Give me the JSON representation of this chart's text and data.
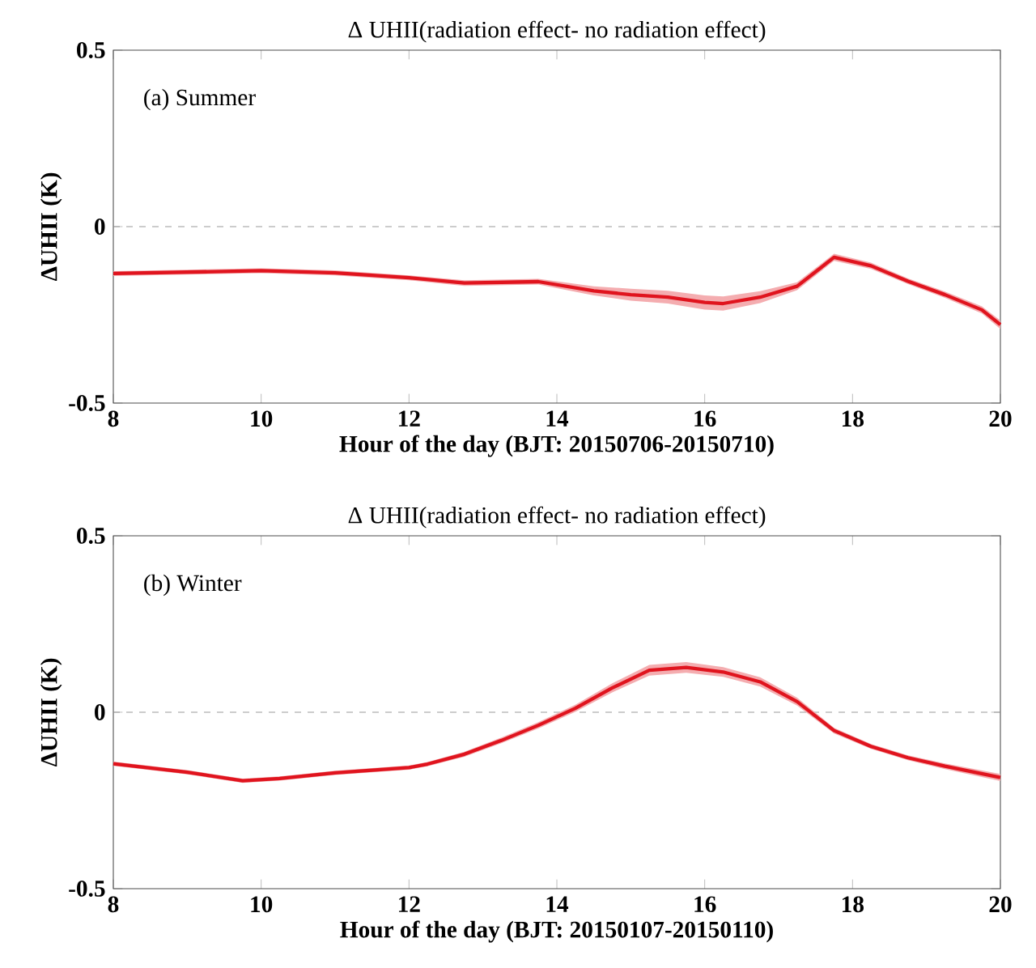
{
  "chart_data": [
    {
      "type": "line",
      "title": "Δ UHII(radiation effect- no radiation effect)",
      "xlabel": "Hour of the day (BJT: 20150706-20150710)",
      "ylabel": "ΔUHII (K)",
      "annotations": [
        "(a) Summer"
      ],
      "xlim": [
        8,
        20
      ],
      "ylim": [
        -0.5,
        0.5
      ],
      "xticks": [
        8,
        10,
        12,
        14,
        16,
        18,
        20
      ],
      "yticks": [
        -0.5,
        0,
        0.5
      ],
      "grid": false,
      "marker": "none",
      "line_style": "solid",
      "ref_lines": [
        {
          "axis": "y",
          "value": 0,
          "color": "#9a9a9a",
          "line_style": "dashed"
        }
      ],
      "series": [
        {
          "color": "#e0141e",
          "x": [
            8,
            10,
            11,
            12,
            12.75,
            13.75,
            14.5,
            15,
            15.5,
            16,
            16.25,
            16.75,
            17.25,
            17.75,
            18.25,
            18.75,
            19.25,
            19.75,
            20
          ],
          "values": [
            -0.133,
            -0.125,
            -0.131,
            -0.145,
            -0.16,
            -0.156,
            -0.182,
            -0.193,
            -0.2,
            -0.215,
            -0.218,
            -0.2,
            -0.169,
            -0.087,
            -0.111,
            -0.155,
            -0.193,
            -0.236,
            -0.278
          ],
          "lower": [
            -0.14,
            -0.132,
            -0.138,
            -0.152,
            -0.168,
            -0.164,
            -0.195,
            -0.21,
            -0.218,
            -0.235,
            -0.238,
            -0.217,
            -0.18,
            -0.097,
            -0.12,
            -0.163,
            -0.202,
            -0.246,
            -0.29
          ],
          "upper": [
            -0.126,
            -0.118,
            -0.124,
            -0.138,
            -0.152,
            -0.148,
            -0.169,
            -0.176,
            -0.182,
            -0.195,
            -0.198,
            -0.183,
            -0.158,
            -0.077,
            -0.102,
            -0.147,
            -0.184,
            -0.226,
            -0.266
          ]
        }
      ]
    },
    {
      "type": "line",
      "title": "Δ UHII(radiation effect- no radiation effect)",
      "xlabel": "Hour of the day (BJT: 20150107-20150110)",
      "ylabel": "ΔUHII (K)",
      "annotations": [
        "(b) Winter"
      ],
      "xlim": [
        8,
        20
      ],
      "ylim": [
        -0.5,
        0.5
      ],
      "xticks": [
        8,
        10,
        12,
        14,
        16,
        18,
        20
      ],
      "yticks": [
        -0.5,
        0,
        0.5
      ],
      "grid": false,
      "marker": "none",
      "line_style": "solid",
      "ref_lines": [
        {
          "axis": "y",
          "value": 0,
          "color": "#9a9a9a",
          "line_style": "dashed"
        }
      ],
      "series": [
        {
          "color": "#e0141e",
          "x": [
            8,
            9,
            9.75,
            10.25,
            11,
            12,
            12.25,
            12.75,
            13.25,
            13.75,
            14.25,
            14.75,
            15.25,
            15.75,
            16.25,
            16.75,
            17.25,
            17.75,
            18.25,
            18.75,
            19.25,
            20
          ],
          "values": [
            -0.146,
            -0.17,
            -0.194,
            -0.188,
            -0.172,
            -0.157,
            -0.147,
            -0.119,
            -0.08,
            -0.037,
            0.011,
            0.069,
            0.119,
            0.127,
            0.114,
            0.086,
            0.03,
            -0.052,
            -0.097,
            -0.129,
            -0.153,
            -0.185
          ],
          "lower": [
            -0.152,
            -0.176,
            -0.2,
            -0.194,
            -0.178,
            -0.163,
            -0.153,
            -0.126,
            -0.088,
            -0.046,
            0.001,
            0.056,
            0.104,
            0.112,
            0.1,
            0.073,
            0.019,
            -0.06,
            -0.104,
            -0.136,
            -0.161,
            -0.195
          ],
          "upper": [
            -0.14,
            -0.164,
            -0.188,
            -0.182,
            -0.166,
            -0.151,
            -0.141,
            -0.112,
            -0.072,
            -0.028,
            0.021,
            0.082,
            0.134,
            0.142,
            0.128,
            0.099,
            0.041,
            -0.044,
            -0.09,
            -0.122,
            -0.145,
            -0.175
          ]
        }
      ]
    }
  ]
}
